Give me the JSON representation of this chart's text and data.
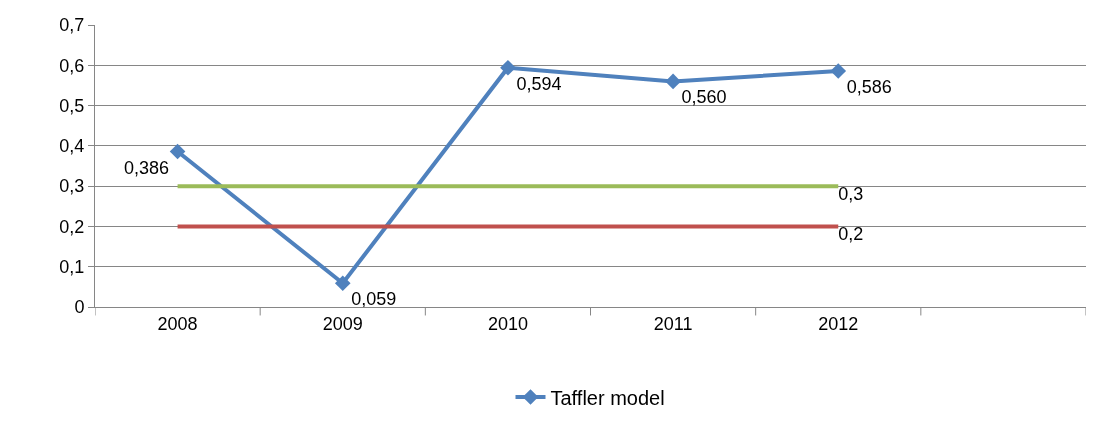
{
  "chart_data": {
    "type": "line",
    "categories": [
      "2008",
      "2009",
      "2010",
      "2011",
      "2012",
      null
    ],
    "series": [
      {
        "name": "Taffler model",
        "color": "#4f81bd",
        "marker": "diamond",
        "values": [
          0.386,
          0.059,
          0.594,
          0.56,
          0.586,
          null
        ],
        "value_labels": [
          "0,386",
          "0,059",
          "0,594",
          "0,560",
          "0,586",
          null
        ]
      },
      {
        "color": "#9bbb59",
        "marker": "none",
        "values": [
          0.3,
          0.3,
          0.3,
          0.3,
          0.3,
          null
        ],
        "value_labels": [
          null,
          null,
          null,
          null,
          "0,3",
          null
        ]
      },
      {
        "color": "#c0504d",
        "marker": "none",
        "values": [
          0.2,
          0.2,
          0.2,
          0.2,
          0.2,
          null
        ],
        "value_labels": [
          null,
          null,
          null,
          null,
          "0,2",
          null
        ]
      }
    ],
    "ylim": [
      0,
      0.7
    ],
    "yticks": [
      0,
      {
        "value": 0.1,
        "label": "0,1"
      },
      {
        "value": 0.2,
        "label": "0,2"
      },
      {
        "value": 0.3,
        "label": "0,3"
      },
      {
        "value": 0.4,
        "label": "0,4"
      },
      {
        "value": 0.5,
        "label": "0,5"
      },
      {
        "value": 0.6,
        "label": "0,6"
      },
      {
        "value": 0.7,
        "label": "0,7"
      }
    ],
    "grid": "y",
    "legend": "bottom"
  }
}
